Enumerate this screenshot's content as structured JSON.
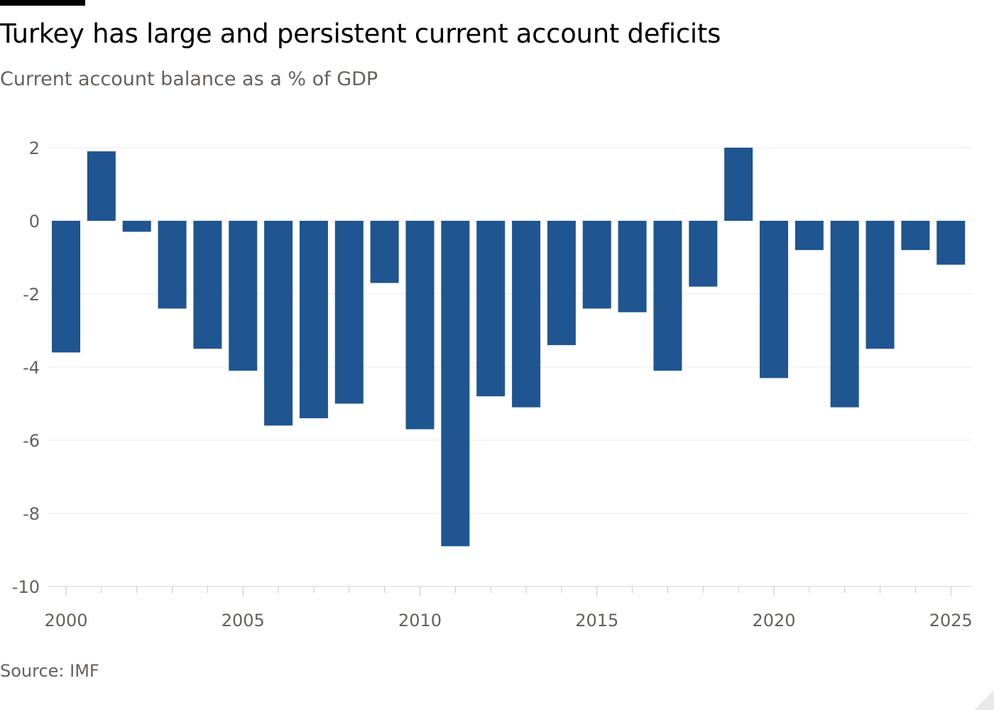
{
  "title": "Turkey has large and persistent current account deficits",
  "subtitle": "Current account balance as a % of GDP",
  "source": "Source: IMF",
  "colors": {
    "bar": "#1f5590",
    "grid": "#ece9e7",
    "tick_text": "#66605c"
  },
  "chart_data": {
    "type": "bar",
    "title": "Turkey has large and persistent current account deficits",
    "subtitle": "Current account balance as a % of GDP",
    "xlabel": "",
    "ylabel": "",
    "ylim": [
      -10,
      2
    ],
    "yticks": [
      2,
      0,
      -2,
      -4,
      -6,
      -8,
      -10
    ],
    "xlim": [
      2000,
      2025
    ],
    "xticks": [
      2000,
      2005,
      2010,
      2015,
      2020,
      2025
    ],
    "grid": true,
    "legend": "none",
    "categories": [
      2000,
      2001,
      2002,
      2003,
      2004,
      2005,
      2006,
      2007,
      2008,
      2009,
      2010,
      2011,
      2012,
      2013,
      2014,
      2015,
      2016,
      2017,
      2018,
      2019,
      2020,
      2021,
      2022,
      2023,
      2024,
      2025
    ],
    "values": [
      -3.6,
      1.9,
      -0.3,
      -2.4,
      -3.5,
      -4.1,
      -5.6,
      -5.4,
      -5.0,
      -1.7,
      -5.7,
      -8.9,
      -4.8,
      -5.1,
      -3.4,
      -2.4,
      -2.5,
      -4.1,
      -1.8,
      2.0,
      -4.3,
      -0.8,
      -5.1,
      -3.5,
      -0.8,
      -1.2
    ]
  }
}
